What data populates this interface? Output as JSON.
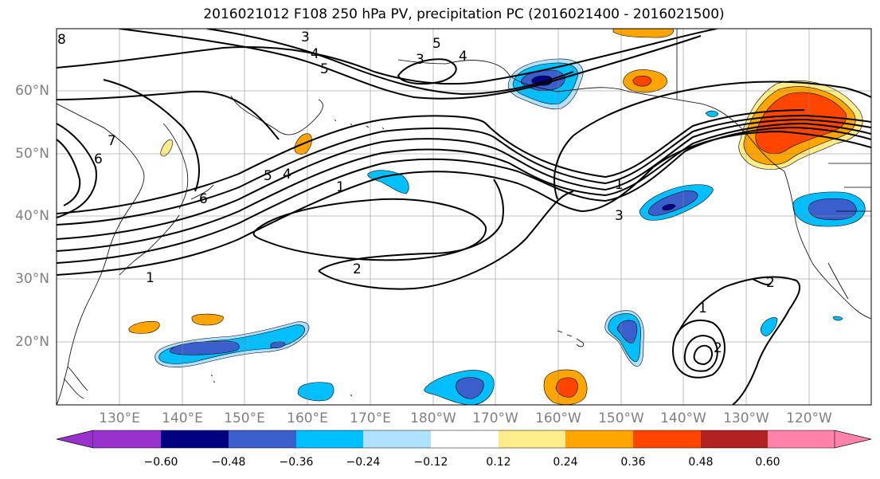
{
  "title": "2016021012 F108 250 hPa PV, precipitation PC (2016021400 - 2016021500)",
  "lat_labels": [
    "60°N",
    "50°N",
    "40°N",
    "30°N",
    "20°N"
  ],
  "lon_labels": [
    "130°E",
    "140°E",
    "150°E",
    "160°E",
    "170°E",
    "180°W",
    "170°W",
    "160°W",
    "150°W",
    "140°W",
    "130°W",
    "120°W"
  ],
  "colorbar": {
    "colors": [
      "#9932cc",
      "#000080",
      "#3a5fcd",
      "#00bfff",
      "#b0e2ff",
      "#ffffff",
      "#ffec8b",
      "#ffa500",
      "#ff4500",
      "#b22222",
      "#ff82ab"
    ],
    "ticks": [
      "−0.60",
      "−0.48",
      "−0.36",
      "−0.24",
      "−0.12",
      "0.12",
      "0.24",
      "0.36",
      "0.48",
      "0.60"
    ]
  },
  "contour_labels": [
    "3",
    "4",
    "5",
    "5",
    "3",
    "4",
    "7",
    "6",
    "5",
    "4",
    "1",
    "6",
    "1",
    "3",
    "2",
    "1",
    "2",
    "1",
    "2",
    "8"
  ]
}
